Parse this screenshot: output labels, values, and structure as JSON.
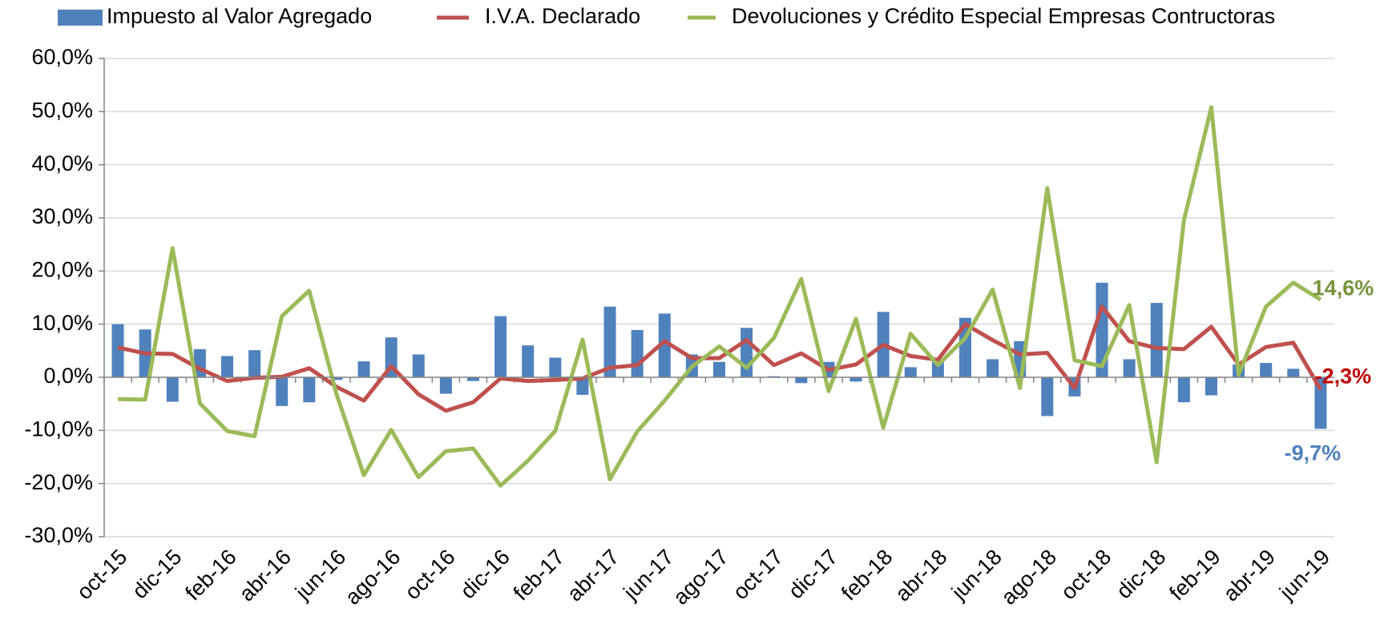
{
  "chart_data": {
    "type": "bar",
    "categories": [
      "oct-15",
      null,
      "dic-15",
      null,
      "feb-16",
      null,
      "abr-16",
      null,
      "jun-16",
      null,
      "ago-16",
      null,
      "oct-16",
      null,
      "dic-16",
      null,
      "feb-17",
      null,
      "abr-17",
      null,
      "jun-17",
      null,
      "ago-17",
      null,
      "oct-17",
      null,
      "dic-17",
      null,
      "feb-18",
      null,
      "abr-18",
      null,
      "jun-18",
      null,
      "ago-18",
      null,
      "oct-18",
      null,
      "dic-18",
      null,
      "feb-19",
      null,
      "abr-19",
      null,
      "jun-19"
    ],
    "series": [
      {
        "name": "Impuesto al Valor Agregado",
        "type": "bar",
        "color": "#4f81bd",
        "label_color": "#4f81bd",
        "values": [
          10,
          9,
          -4.6,
          5.3,
          4,
          5.1,
          -5.4,
          -4.7,
          -0.5,
          3,
          7.5,
          4.3,
          -3.1,
          -0.7,
          11.5,
          6,
          3.7,
          -3.3,
          13.3,
          8.9,
          12,
          4.3,
          2.9,
          9.3,
          0.2,
          -1.1,
          2.9,
          -0.8,
          12.3,
          1.9,
          3.3,
          11.2,
          3.4,
          6.8,
          -7.3,
          -3.6,
          17.8,
          3.4,
          14,
          -4.7,
          -3.4,
          2.4,
          2.7,
          1.6,
          -9.7
        ],
        "value_labels": [
          null,
          null,
          null,
          null,
          null,
          null,
          null,
          null,
          null,
          null,
          null,
          null,
          null,
          null,
          null,
          null,
          null,
          null,
          null,
          null,
          null,
          null,
          null,
          null,
          null,
          null,
          null,
          null,
          null,
          null,
          null,
          null,
          null,
          null,
          null,
          null,
          null,
          null,
          null,
          null,
          null,
          null,
          null,
          null,
          "-9,7%"
        ]
      },
      {
        "name": "I.V.A. Declarado",
        "type": "line",
        "color": "#c0504d",
        "label_color": "#c00000",
        "values": [
          5.6,
          4.5,
          4.4,
          1.6,
          -0.7,
          -0.1,
          0.1,
          1.7,
          -1.8,
          -4.4,
          2.1,
          -3.2,
          -6.3,
          -4.7,
          -0.2,
          -0.7,
          -0.5,
          -0.2,
          1.8,
          2.3,
          6.8,
          3.6,
          3.6,
          7,
          2.3,
          4.5,
          1.4,
          2.4,
          6.1,
          4,
          3.3,
          10,
          7,
          4.3,
          4.6,
          -2,
          13.3,
          6.8,
          5.5,
          5.3,
          9.5,
          2.4,
          5.7,
          6.5,
          -2.3
        ],
        "value_labels": [
          null,
          null,
          null,
          null,
          null,
          null,
          null,
          null,
          null,
          null,
          null,
          null,
          null,
          null,
          null,
          null,
          null,
          null,
          null,
          null,
          null,
          null,
          null,
          null,
          null,
          null,
          null,
          null,
          null,
          null,
          null,
          null,
          null,
          null,
          null,
          null,
          null,
          null,
          null,
          null,
          null,
          null,
          null,
          null,
          "-2,3%"
        ]
      },
      {
        "name": "Devoluciones y Crédito Especial Empresas Contructoras",
        "type": "line",
        "color": "#9bbb59",
        "label_color": "#77933c",
        "values": [
          -4.1,
          -4.2,
          24.3,
          -4.9,
          -10.1,
          -11.1,
          11.5,
          16.3,
          -3.2,
          -18.4,
          -9.9,
          -18.8,
          -13.9,
          -13.4,
          -20.4,
          -15.7,
          -10.1,
          7.1,
          -19.2,
          -10.2,
          -4.4,
          2,
          5.8,
          1.8,
          7.4,
          18.5,
          -2.6,
          11,
          -9.5,
          8.2,
          2.3,
          7.4,
          16.5,
          -2,
          35.6,
          3.2,
          2.1,
          13.6,
          -16,
          29.6,
          50.8,
          0.5,
          13.3,
          17.8,
          14.6
        ],
        "value_labels": [
          null,
          null,
          null,
          null,
          null,
          null,
          null,
          null,
          null,
          null,
          null,
          null,
          null,
          null,
          null,
          null,
          null,
          null,
          null,
          null,
          null,
          null,
          null,
          null,
          null,
          null,
          null,
          null,
          null,
          null,
          null,
          null,
          null,
          null,
          null,
          null,
          null,
          null,
          null,
          null,
          null,
          null,
          null,
          null,
          "14,6%"
        ]
      }
    ],
    "ylim": [
      -30,
      60
    ],
    "yticks": [
      {
        "value": -30,
        "label": "-30,0%"
      },
      {
        "value": -20,
        "label": "-20,0%"
      },
      {
        "value": -10,
        "label": "-10,0%"
      },
      {
        "value": 0,
        "label": "0,0%"
      },
      {
        "value": 10,
        "label": "10,0%"
      },
      {
        "value": 20,
        "label": "20,0%"
      },
      {
        "value": 30,
        "label": "30,0%"
      },
      {
        "value": 40,
        "label": "40,0%"
      },
      {
        "value": 50,
        "label": "50,0%"
      },
      {
        "value": 60,
        "label": "60,0%"
      }
    ],
    "grid": true
  }
}
